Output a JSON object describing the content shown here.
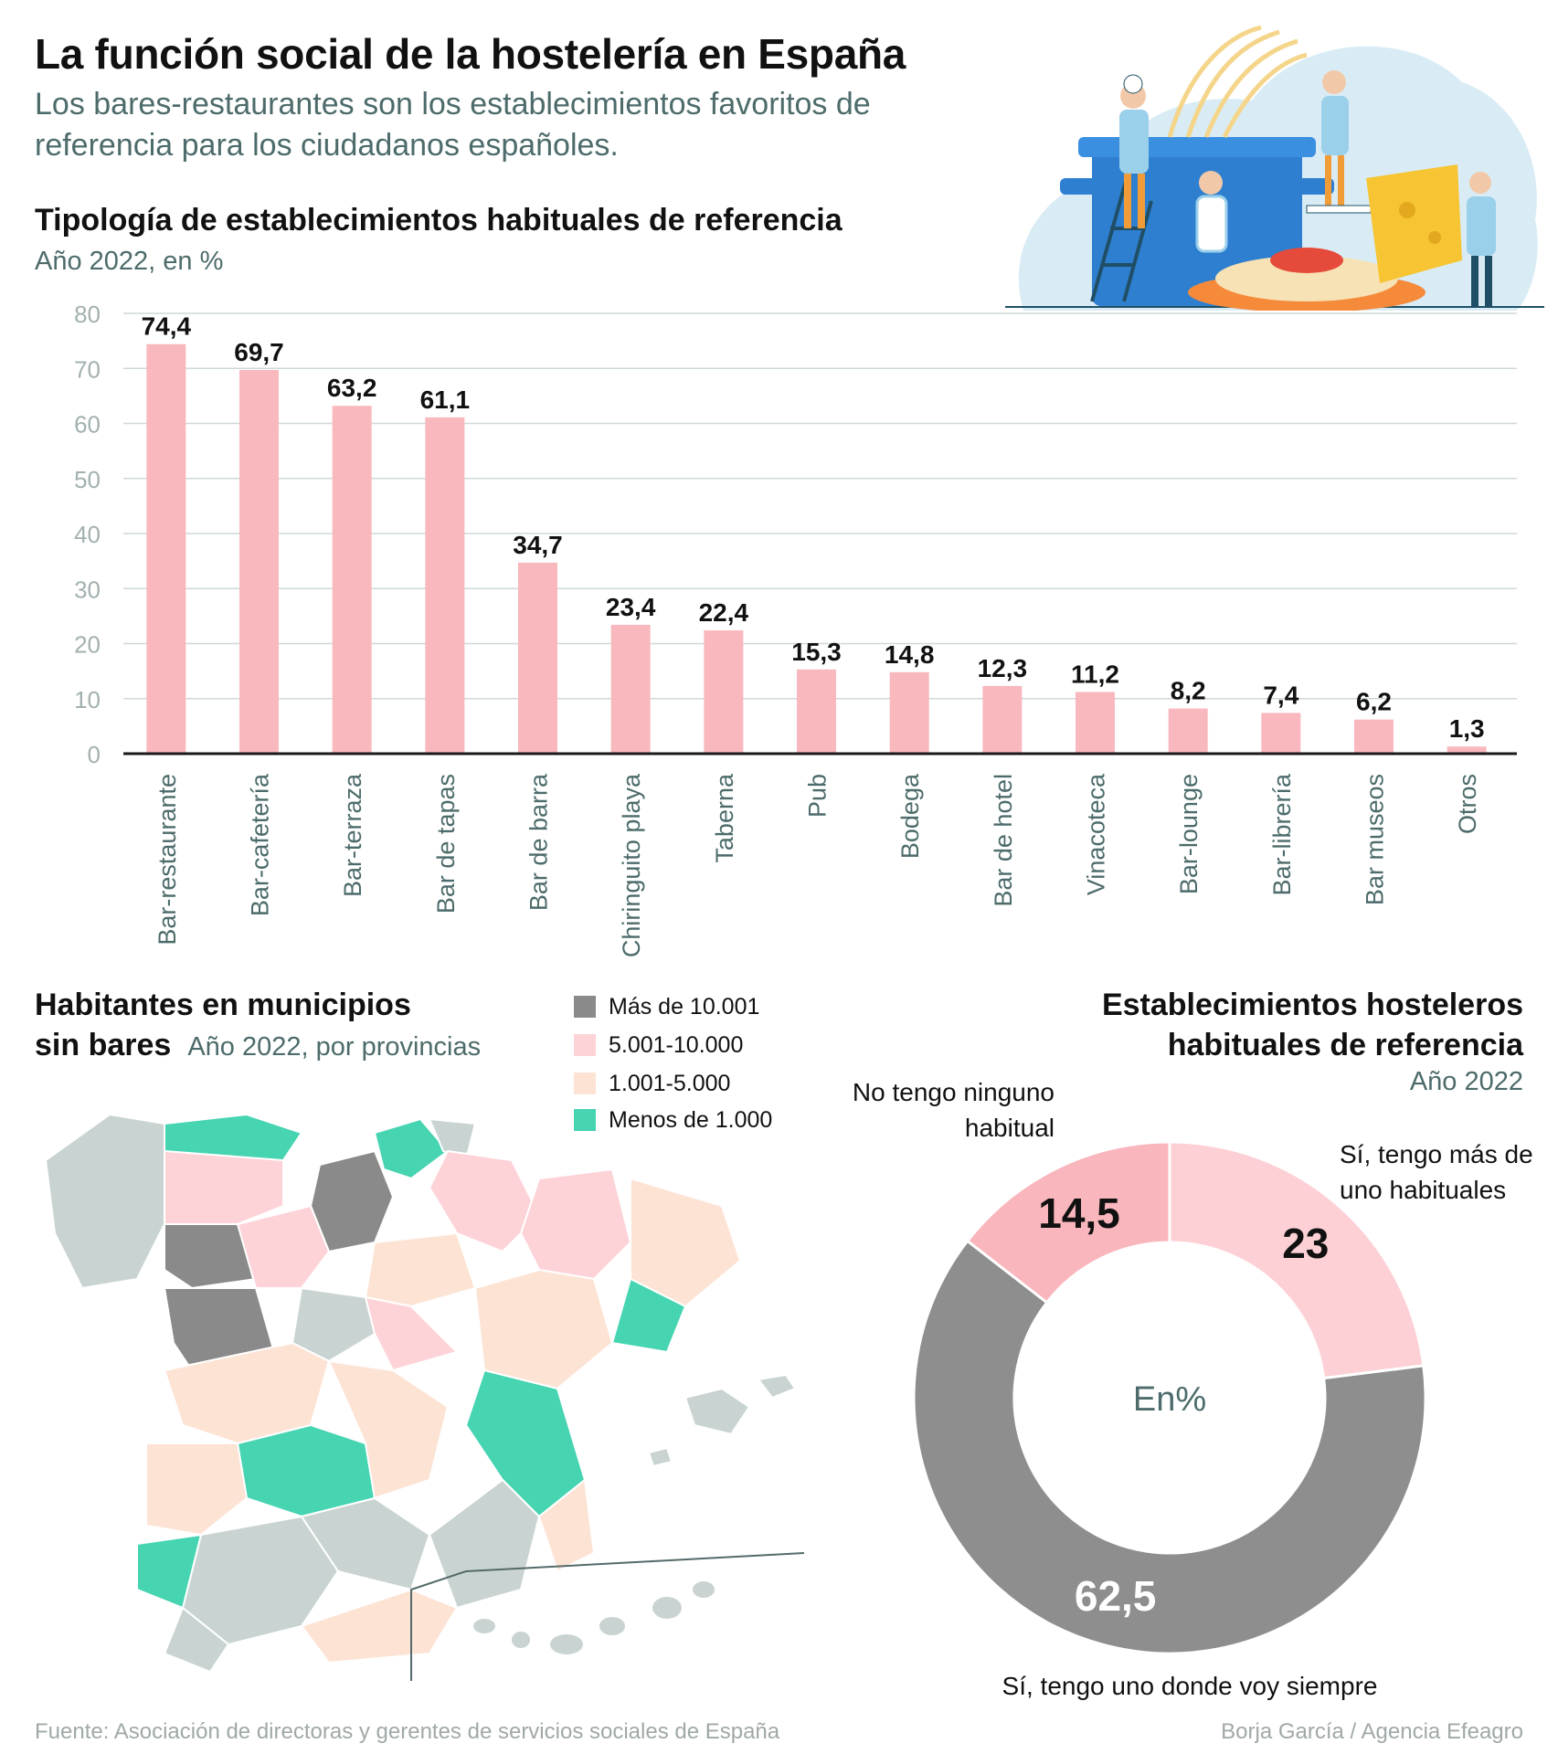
{
  "title": "La función social de la hostelería en España",
  "subtitle": "Los bares-restaurantes son los establecimientos favoritos de referencia para los ciudadanos españoles.",
  "chart_data": [
    {
      "type": "bar",
      "title": "Tipología de establecimientos habituales de referencia",
      "subtitle": "Año 2022, en %",
      "categories": [
        "Bar-restaurante",
        "Bar-cafetería",
        "Bar-terraza",
        "Bar de tapas",
        "Bar de barra",
        "Chiringuito playa",
        "Taberna",
        "Pub",
        "Bodega",
        "Bar de hotel",
        "Vinacoteca",
        "Bar-lounge",
        "Bar-librería",
        "Bar museos",
        "Otros"
      ],
      "values": [
        74.4,
        69.7,
        63.2,
        61.1,
        34.7,
        23.4,
        22.4,
        15.3,
        14.8,
        12.3,
        11.2,
        8.2,
        7.4,
        6.2,
        1.3
      ],
      "value_labels": [
        "74,4",
        "69,7",
        "63,2",
        "61,1",
        "34,7",
        "23,4",
        "22,4",
        "15,3",
        "14,8",
        "12,3",
        "11,2",
        "8,2",
        "7,4",
        "6,2",
        "1,3"
      ],
      "ylim": [
        0,
        80
      ],
      "yticks": [
        "0",
        "10",
        "20",
        "30",
        "40",
        "50",
        "60",
        "70",
        "80"
      ],
      "grid": true,
      "bar_color": "#f9b8bd"
    },
    {
      "type": "pie",
      "title": "Establecimientos hosteleros habituales de referencia",
      "subtitle": "Año 2022",
      "center_label": "En%",
      "slices": [
        {
          "label": "Sí, tengo más de uno habituales",
          "value": 23,
          "value_label": "23",
          "color": "#fdd0d5"
        },
        {
          "label": "Sí, tengo uno donde voy siempre",
          "value": 62.5,
          "value_label": "62,5",
          "color": "#8f8e8f"
        },
        {
          "label": "No tengo ninguno habitual",
          "value": 14.5,
          "value_label": "14,5",
          "color": "#f9b6bc"
        }
      ]
    }
  ],
  "map": {
    "title_line1": "Habitantes en municipios",
    "title_line2": "sin bares",
    "subtitle": "Año 2022, por provincias",
    "legend": [
      {
        "label": "Más de 10.001",
        "color": "#8a8a8a"
      },
      {
        "label": "5.001-10.000",
        "color": "#fdd3d8"
      },
      {
        "label": "1.001-5.000",
        "color": "#fde3d4"
      },
      {
        "label": "Menos de 1.000",
        "color": "#46d4b1"
      }
    ],
    "grey_color": "#c9d4d2"
  },
  "footer": {
    "source": "Fuente: Asociación de directoras y gerentes de servicios sociales de España",
    "credit": "Borja García / Agencia Efeagro"
  }
}
